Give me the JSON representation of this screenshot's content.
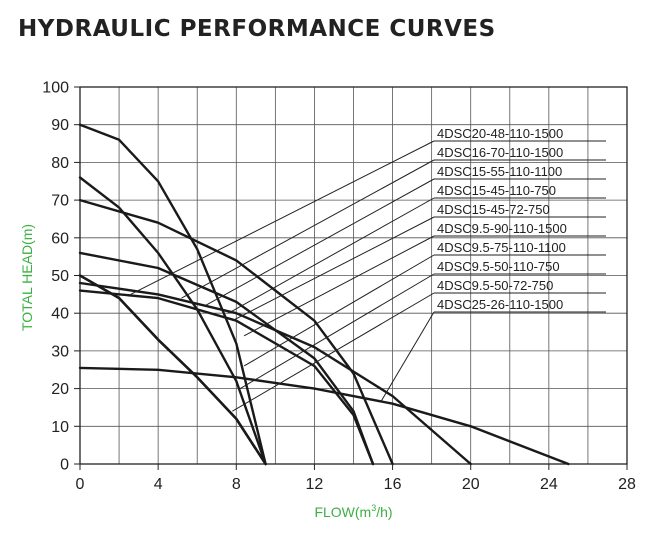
{
  "page": {
    "title": "HYDRAULIC PERFORMANCE CURVES"
  },
  "colors": {
    "axis_title": "#3cb043",
    "curve": "#1a1a1a",
    "grid": "#555555",
    "text": "#222222"
  },
  "chart_data": {
    "type": "line",
    "title": "HYDRAULIC PERFORMANCE CURVES",
    "xlabel": "FLOW(m³/h)",
    "ylabel": "TOTAL HEAD(m)",
    "xlim": [
      0,
      28
    ],
    "ylim": [
      0,
      100
    ],
    "xticks": [
      0,
      4,
      8,
      12,
      16,
      20,
      24,
      28
    ],
    "yticks": [
      0,
      10,
      20,
      30,
      40,
      50,
      60,
      70,
      80,
      90,
      100
    ],
    "x_grid_step": 2,
    "y_grid_step": 10,
    "grid": true,
    "legend": "callout labels on the right with leader lines",
    "series": [
      {
        "name": "4DSC20-48-110-1500",
        "x": [
          0,
          4,
          8,
          12,
          16,
          20
        ],
        "y": [
          48,
          45,
          40,
          31,
          18,
          0
        ]
      },
      {
        "name": "4DSC16-70-110-1500",
        "x": [
          0,
          4,
          8,
          12,
          14,
          16
        ],
        "y": [
          70,
          64,
          54,
          38,
          24,
          0
        ]
      },
      {
        "name": "4DSC15-55-110-1100",
        "x": [
          0,
          4,
          8,
          12,
          14,
          15
        ],
        "y": [
          56,
          52,
          43,
          28,
          14,
          0
        ]
      },
      {
        "name": "4DSC15-45-110-750",
        "x": [
          0,
          4,
          8,
          12,
          14,
          15
        ],
        "y": [
          46,
          44,
          38,
          26,
          13,
          0
        ]
      },
      {
        "name": "4DSC15-45-72-750",
        "x": [
          0,
          2,
          4,
          6,
          8,
          9.5
        ],
        "y": [
          50,
          44,
          33,
          23,
          12,
          0
        ]
      },
      {
        "name": "4DSC9.5-90-110-1500",
        "x": [
          0,
          2,
          4,
          6,
          8,
          9.5
        ],
        "y": [
          90,
          86,
          75,
          57,
          32,
          0
        ]
      },
      {
        "name": "4DSC9.5-75-110-1100",
        "x": [
          0,
          2,
          4,
          6,
          8,
          9.5
        ],
        "y": [
          76,
          68,
          56,
          41,
          22,
          0
        ]
      },
      {
        "name": "4DSC9.5-50-110-750",
        "x": [
          0,
          2,
          4,
          6,
          8,
          9.5
        ],
        "y": [
          50,
          44,
          33,
          23,
          12,
          0
        ]
      },
      {
        "name": "4DSC9.5-50-72-750",
        "x": [
          0,
          2,
          4,
          6,
          8,
          9.5
        ],
        "y": [
          50,
          44,
          33,
          23,
          12,
          0
        ]
      },
      {
        "name": "4DSC25-26-110-1500",
        "x": [
          0,
          4,
          8,
          12,
          16,
          20,
          25
        ],
        "y": [
          25.5,
          25,
          23,
          20,
          16,
          10,
          0
        ]
      }
    ],
    "callouts": [
      {
        "series": "4DSC20-48-110-1500",
        "at": [
          2.6,
          45
        ]
      },
      {
        "series": "4DSC16-70-110-1500",
        "at": [
          5.2,
          44
        ]
      },
      {
        "series": "4DSC15-55-110-1100",
        "at": [
          6.4,
          42
        ]
      },
      {
        "series": "4DSC15-45-110-750",
        "at": [
          7.6,
          40
        ]
      },
      {
        "series": "4DSC15-45-72-750",
        "at": [
          7.8,
          38
        ]
      },
      {
        "series": "4DSC9.5-90-110-1500",
        "at": [
          8.4,
          34
        ]
      },
      {
        "series": "4DSC9.5-75-110-1100",
        "at": [
          8.4,
          26
        ]
      },
      {
        "series": "4DSC9.5-50-110-750",
        "at": [
          8.2,
          20
        ]
      },
      {
        "series": "4DSC9.5-50-72-750",
        "at": [
          7.8,
          14
        ]
      },
      {
        "series": "4DSC25-26-110-1500",
        "at": [
          15.4,
          16.5
        ]
      }
    ]
  }
}
